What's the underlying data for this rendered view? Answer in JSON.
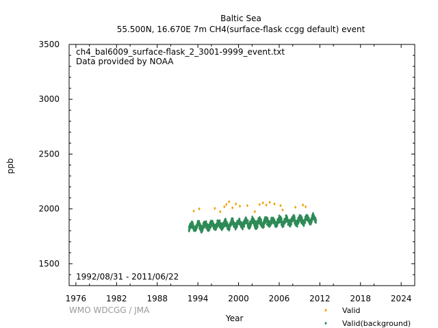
{
  "chart_data": {
    "type": "scatter",
    "title": "Baltic Sea",
    "subtitle": "55.500N, 16.670E 7m    CH4(surface-flask ccgg default) event",
    "xlabel": "Year",
    "ylabel": "ppb",
    "xlim": [
      1975,
      2026
    ],
    "ylim": [
      1300,
      3500
    ],
    "x_ticks": [
      "1976",
      "1982",
      "1988",
      "1994",
      "2000",
      "2006",
      "2012",
      "2018",
      "2024"
    ],
    "y_ticks": [
      "1500",
      "2000",
      "2500",
      "3000",
      "3500"
    ],
    "annotations": {
      "file": "ch4_bal6009_surface-flask_2_3001-9999_event.txt",
      "provider": "Data provided by NOAA",
      "period": "1992/08/31 - 2011/06/22"
    },
    "credit": "WMO WDCGG / JMA",
    "legend_position": "bottom-right",
    "series": [
      {
        "name": "Valid",
        "color": "#f0a000",
        "marker": "diamond",
        "x": [
          1993.4,
          1994.2,
          1996.5,
          1997.3,
          1997.9,
          1998.2,
          1998.6,
          1999.1,
          1999.6,
          2000.2,
          2001.3,
          2002.4,
          2003.1,
          2003.6,
          2004.1,
          2004.6,
          2005.3,
          2006.2,
          2006.5,
          2008.4,
          2009.5,
          2009.9
        ],
        "y": [
          1980,
          2000,
          2005,
          1975,
          2020,
          2040,
          2065,
          2010,
          2045,
          2025,
          2030,
          1975,
          2040,
          2055,
          2035,
          2060,
          2045,
          2030,
          1990,
          2015,
          2035,
          2020
        ]
      },
      {
        "name": "Valid(background)",
        "color": "#2e8b57",
        "marker": "diamond",
        "x_range": [
          1992.67,
          2011.47
        ],
        "trend_start": 1835,
        "trend_end": 1905,
        "seasonal_amplitude": 25,
        "noise": 28
      }
    ]
  }
}
